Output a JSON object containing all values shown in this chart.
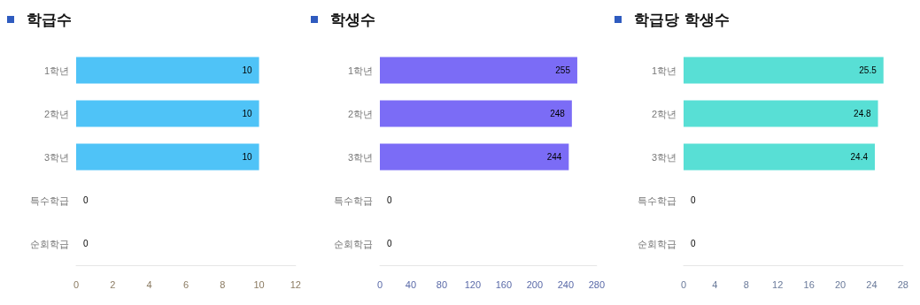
{
  "chart_data": [
    {
      "type": "bar",
      "title": "학급수",
      "orientation": "horizontal",
      "categories": [
        "1학년",
        "2학년",
        "3학년",
        "특수학급",
        "순회학급"
      ],
      "values": [
        10,
        10,
        10,
        0,
        0
      ],
      "color": "#4fc3f7",
      "xlim": [
        0,
        12
      ],
      "xticks": [
        0,
        2,
        4,
        6,
        8,
        10,
        12
      ],
      "data_labels": true
    },
    {
      "type": "bar",
      "title": "학생수",
      "orientation": "horizontal",
      "categories": [
        "1학년",
        "2학년",
        "3학년",
        "특수학급",
        "순회학급"
      ],
      "values": [
        255,
        248,
        244,
        0,
        0
      ],
      "color": "#7b6cf6",
      "xlim": [
        0,
        280
      ],
      "xticks": [
        0,
        40,
        80,
        120,
        160,
        200,
        240,
        280
      ],
      "data_labels": true
    },
    {
      "type": "bar",
      "title": "학급당 학생수",
      "orientation": "horizontal",
      "categories": [
        "1학년",
        "2학년",
        "3학년",
        "특수학급",
        "순회학급"
      ],
      "values": [
        25.5,
        24.8,
        24.4,
        0,
        0
      ],
      "color": "#58dfd5",
      "xlim": [
        0,
        28
      ],
      "xticks": [
        0,
        4,
        8,
        12,
        16,
        20,
        24,
        28
      ],
      "data_labels": true
    }
  ]
}
